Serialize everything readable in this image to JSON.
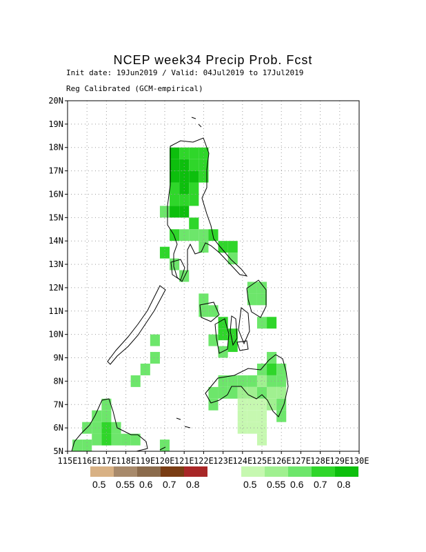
{
  "title": "NCEP week34 Precip Prob. Fcst",
  "subtitle_line1": "Init date: 19Jun2019 / Valid: 04Jul2019 to 17Jul2019",
  "subtitle_line2": "Reg Calibrated (GCM-empirical)",
  "map": {
    "lat_range": [
      5,
      20
    ],
    "lon_range": [
      115,
      130
    ],
    "lat_labels": [
      "5N",
      "6N",
      "7N",
      "8N",
      "9N",
      "10N",
      "11N",
      "12N",
      "13N",
      "14N",
      "15N",
      "16N",
      "17N",
      "18N",
      "19N",
      "20N"
    ],
    "lon_labels": [
      "115E",
      "116E",
      "117E",
      "118E",
      "119E",
      "120E",
      "121E",
      "122E",
      "123E",
      "124E",
      "125E",
      "126E",
      "127E",
      "128E",
      "129E",
      "130E"
    ],
    "grid": "dotted every 1 degree",
    "wet_cells": [
      {
        "lon": 120.5,
        "lat": 17.75,
        "prob": 0.8
      },
      {
        "lon": 121.0,
        "lat": 17.75,
        "prob": 0.7
      },
      {
        "lon": 121.5,
        "lat": 17.75,
        "prob": 0.7
      },
      {
        "lon": 122.0,
        "lat": 17.75,
        "prob": 0.7
      },
      {
        "lon": 120.5,
        "lat": 17.25,
        "prob": 0.8
      },
      {
        "lon": 121.0,
        "lat": 17.25,
        "prob": 0.8
      },
      {
        "lon": 121.5,
        "lat": 17.25,
        "prob": 0.7
      },
      {
        "lon": 122.0,
        "lat": 17.25,
        "prob": 0.7
      },
      {
        "lon": 120.5,
        "lat": 16.75,
        "prob": 0.8
      },
      {
        "lon": 121.0,
        "lat": 16.75,
        "prob": 0.8
      },
      {
        "lon": 121.5,
        "lat": 16.75,
        "prob": 0.8
      },
      {
        "lon": 122.0,
        "lat": 16.75,
        "prob": 0.7
      },
      {
        "lon": 120.5,
        "lat": 16.25,
        "prob": 0.7
      },
      {
        "lon": 121.0,
        "lat": 16.25,
        "prob": 0.8
      },
      {
        "lon": 121.5,
        "lat": 16.25,
        "prob": 0.7
      },
      {
        "lon": 120.5,
        "lat": 15.75,
        "prob": 0.7
      },
      {
        "lon": 121.0,
        "lat": 15.75,
        "prob": 0.7
      },
      {
        "lon": 121.5,
        "lat": 15.75,
        "prob": 0.7
      },
      {
        "lon": 120.0,
        "lat": 15.25,
        "prob": 0.6
      },
      {
        "lon": 120.5,
        "lat": 15.25,
        "prob": 0.8
      },
      {
        "lon": 121.0,
        "lat": 15.25,
        "prob": 0.8
      },
      {
        "lon": 121.5,
        "lat": 14.75,
        "prob": 0.7
      },
      {
        "lon": 122.0,
        "lat": 14.25,
        "prob": 0.6
      },
      {
        "lon": 120.5,
        "lat": 14.25,
        "prob": 0.7
      },
      {
        "lon": 121.0,
        "lat": 14.25,
        "prob": 0.6
      },
      {
        "lon": 121.5,
        "lat": 14.25,
        "prob": 0.6
      },
      {
        "lon": 122.0,
        "lat": 13.75,
        "prob": 0.6
      },
      {
        "lon": 122.5,
        "lat": 14.25,
        "prob": 0.7
      },
      {
        "lon": 120.0,
        "lat": 13.5,
        "prob": 0.7
      },
      {
        "lon": 120.5,
        "lat": 13.0,
        "prob": 0.6
      },
      {
        "lon": 121.0,
        "lat": 12.5,
        "prob": 0.6
      },
      {
        "lon": 123.0,
        "lat": 13.75,
        "prob": 0.7
      },
      {
        "lon": 123.5,
        "lat": 13.75,
        "prob": 0.7
      },
      {
        "lon": 123.5,
        "lat": 13.25,
        "prob": 0.6
      },
      {
        "lon": 124.5,
        "lat": 12.0,
        "prob": 0.6
      },
      {
        "lon": 125.0,
        "lat": 12.0,
        "prob": 0.6
      },
      {
        "lon": 124.5,
        "lat": 11.5,
        "prob": 0.6
      },
      {
        "lon": 125.0,
        "lat": 11.5,
        "prob": 0.6
      },
      {
        "lon": 122.0,
        "lat": 11.5,
        "prob": 0.6
      },
      {
        "lon": 122.0,
        "lat": 11.0,
        "prob": 0.6
      },
      {
        "lon": 122.5,
        "lat": 11.0,
        "prob": 0.6
      },
      {
        "lon": 123.0,
        "lat": 10.5,
        "prob": 0.7
      },
      {
        "lon": 123.0,
        "lat": 10.0,
        "prob": 0.7
      },
      {
        "lon": 123.5,
        "lat": 10.0,
        "prob": 0.7
      },
      {
        "lon": 122.5,
        "lat": 9.75,
        "prob": 0.6
      },
      {
        "lon": 123.0,
        "lat": 9.25,
        "prob": 0.6
      },
      {
        "lon": 123.5,
        "lat": 9.5,
        "prob": 0.7
      },
      {
        "lon": 125.5,
        "lat": 10.5,
        "prob": 0.7
      },
      {
        "lon": 125.0,
        "lat": 10.5,
        "prob": 0.6
      },
      {
        "lon": 125.5,
        "lat": 9.0,
        "prob": 0.6
      },
      {
        "lon": 125.0,
        "lat": 8.5,
        "prob": 0.6
      },
      {
        "lon": 125.5,
        "lat": 8.5,
        "prob": 0.7
      },
      {
        "lon": 126.0,
        "lat": 8.5,
        "prob": 0.6
      },
      {
        "lon": 123.0,
        "lat": 8.0,
        "prob": 0.6
      },
      {
        "lon": 123.5,
        "lat": 8.0,
        "prob": 0.6
      },
      {
        "lon": 124.0,
        "lat": 8.0,
        "prob": 0.6
      },
      {
        "lon": 124.5,
        "lat": 8.0,
        "prob": 0.6
      },
      {
        "lon": 125.0,
        "lat": 8.0,
        "prob": 0.55
      },
      {
        "lon": 125.5,
        "lat": 8.0,
        "prob": 0.6
      },
      {
        "lon": 126.0,
        "lat": 8.0,
        "prob": 0.6
      },
      {
        "lon": 122.5,
        "lat": 7.5,
        "prob": 0.6
      },
      {
        "lon": 123.0,
        "lat": 7.5,
        "prob": 0.6
      },
      {
        "lon": 123.5,
        "lat": 7.5,
        "prob": 0.6
      },
      {
        "lon": 124.0,
        "lat": 7.5,
        "prob": 0.55
      },
      {
        "lon": 124.5,
        "lat": 7.5,
        "prob": 0.55
      },
      {
        "lon": 125.0,
        "lat": 7.5,
        "prob": 0.6
      },
      {
        "lon": 125.5,
        "lat": 7.5,
        "prob": 0.55
      },
      {
        "lon": 126.0,
        "lat": 7.5,
        "prob": 0.55
      },
      {
        "lon": 122.5,
        "lat": 7.0,
        "prob": 0.6
      },
      {
        "lon": 124.0,
        "lat": 7.0,
        "prob": 0.5
      },
      {
        "lon": 124.5,
        "lat": 7.0,
        "prob": 0.5
      },
      {
        "lon": 125.0,
        "lat": 7.0,
        "prob": 0.5
      },
      {
        "lon": 125.5,
        "lat": 7.0,
        "prob": 0.55
      },
      {
        "lon": 126.0,
        "lat": 7.0,
        "prob": 0.6
      },
      {
        "lon": 124.0,
        "lat": 6.5,
        "prob": 0.5
      },
      {
        "lon": 124.5,
        "lat": 6.5,
        "prob": 0.5
      },
      {
        "lon": 125.0,
        "lat": 6.5,
        "prob": 0.5
      },
      {
        "lon": 126.0,
        "lat": 6.5,
        "prob": 0.6
      },
      {
        "lon": 124.0,
        "lat": 6.0,
        "prob": 0.5
      },
      {
        "lon": 124.5,
        "lat": 6.0,
        "prob": 0.5
      },
      {
        "lon": 125.0,
        "lat": 6.0,
        "prob": 0.5
      },
      {
        "lon": 125.0,
        "lat": 5.5,
        "prob": 0.5
      },
      {
        "lon": 119.5,
        "lat": 9.0,
        "prob": 0.6
      },
      {
        "lon": 119.0,
        "lat": 8.5,
        "prob": 0.6
      },
      {
        "lon": 118.5,
        "lat": 8.0,
        "prob": 0.6
      },
      {
        "lon": 119.5,
        "lat": 9.75,
        "prob": 0.6
      },
      {
        "lon": 116.0,
        "lat": 6.0,
        "prob": 0.6
      },
      {
        "lon": 116.5,
        "lat": 6.0,
        "prob": 0.6
      },
      {
        "lon": 117.0,
        "lat": 6.0,
        "prob": 0.7
      },
      {
        "lon": 117.5,
        "lat": 6.0,
        "prob": 0.6
      },
      {
        "lon": 116.5,
        "lat": 6.5,
        "prob": 0.6
      },
      {
        "lon": 117.0,
        "lat": 6.5,
        "prob": 0.6
      },
      {
        "lon": 117.0,
        "lat": 7.0,
        "prob": 0.6
      },
      {
        "lon": 115.5,
        "lat": 5.25,
        "prob": 0.6
      },
      {
        "lon": 116.0,
        "lat": 5.25,
        "prob": 0.6
      },
      {
        "lon": 116.5,
        "lat": 5.5,
        "prob": 0.6
      },
      {
        "lon": 117.0,
        "lat": 5.5,
        "prob": 0.7
      },
      {
        "lon": 117.5,
        "lat": 5.5,
        "prob": 0.6
      },
      {
        "lon": 118.0,
        "lat": 5.5,
        "prob": 0.6
      },
      {
        "lon": 118.5,
        "lat": 5.5,
        "prob": 0.6
      },
      {
        "lon": 120.0,
        "lat": 5.25,
        "prob": 0.6
      }
    ]
  },
  "legend": {
    "dry": {
      "colors": [
        "#d8b184",
        "#a88a6b",
        "#8b6b4c",
        "#7a3d14",
        "#a82727"
      ],
      "labels": [
        "0.5",
        "0.55",
        "0.6",
        "0.7",
        "0.8"
      ]
    },
    "wet": {
      "colors": [
        "#c6f8b0",
        "#a0f090",
        "#6de66b",
        "#2fd62a",
        "#0dbf0d"
      ],
      "labels": [
        "0.5",
        "0.55",
        "0.6",
        "0.7",
        "0.8"
      ]
    }
  }
}
